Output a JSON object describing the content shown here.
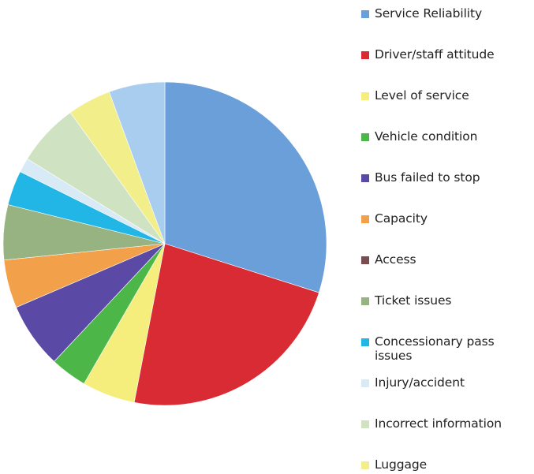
{
  "chart_data": {
    "type": "pie",
    "title": "",
    "legend_position": "right",
    "slices": [
      {
        "label": "Service Reliability",
        "value": 31,
        "color": "#6a9fd9"
      },
      {
        "label": "Driver/staff attitude",
        "value": 24,
        "color": "#d92b33"
      },
      {
        "label": "Level of service",
        "value": 5.5,
        "color": "#f5ee7c"
      },
      {
        "label": "Vehicle condition",
        "value": 3.8,
        "color": "#4cb748"
      },
      {
        "label": "Bus failed to stop",
        "value": 6.8,
        "color": "#5a4aa6"
      },
      {
        "label": "Capacity",
        "value": 5,
        "color": "#f2a04a"
      },
      {
        "label": "Access",
        "value": 0,
        "color": "#7a4e4e"
      },
      {
        "label": "Ticket issues",
        "value": 5.7,
        "color": "#96b381"
      },
      {
        "label": "Concessionary pass issues",
        "value": 3.6,
        "color": "#22b6e6"
      },
      {
        "label": "Injury/accident",
        "value": 1.5,
        "color": "#d7eaf5"
      },
      {
        "label": "Incorrect information",
        "value": 6.5,
        "color": "#cfe3c2"
      },
      {
        "label": "Luggage",
        "value": 4.5,
        "color": "#f2ee8a"
      },
      {
        "label": "",
        "value": 5.8,
        "color": "#a9cdee"
      }
    ]
  }
}
